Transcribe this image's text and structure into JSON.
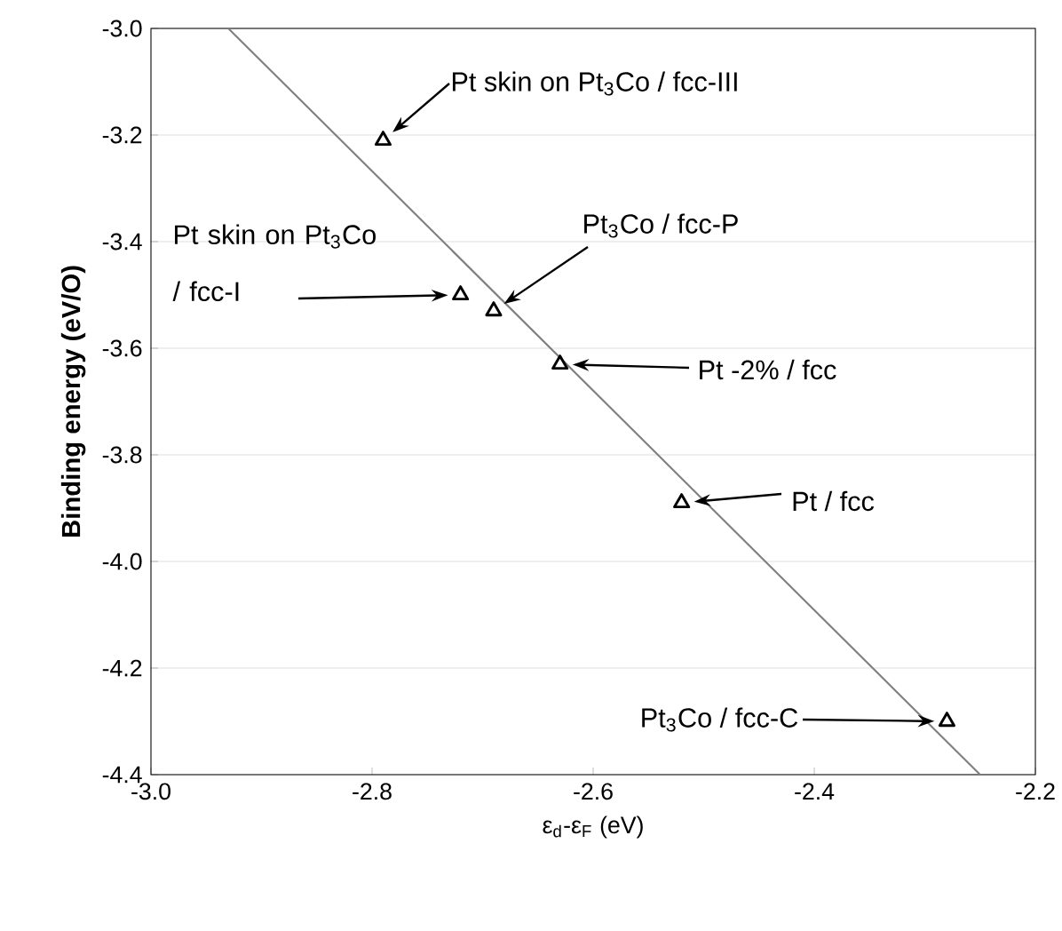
{
  "chart_data": {
    "type": "scatter",
    "xlabel": "ε$_{d}$-ε$_{F}$ (eV)",
    "ylabel": "Binding energy (eV/O)",
    "series": [
      {
        "color": "#000000",
        "marker": "triangle",
        "x": [
          -2.79,
          -2.72,
          -2.69,
          -2.63,
          -2.52,
          -2.28
        ],
        "values": [
          -3.21,
          -3.5,
          -3.53,
          -3.63,
          -3.89,
          -4.3
        ]
      },
      {
        "type": "line",
        "color": "#808080",
        "marker": "none",
        "x": [
          -2.93,
          -2.25
        ],
        "values": [
          -3.0,
          -4.4
        ]
      }
    ],
    "xlim": [
      -3.0,
      -2.2
    ],
    "ylim": [
      -4.4,
      -3.0
    ],
    "xticks": [
      {
        "value": -3.0,
        "label": "-3.0"
      },
      {
        "value": -2.8,
        "label": "-2.8"
      },
      {
        "value": -2.6,
        "label": "-2.6"
      },
      {
        "value": -2.4,
        "label": "-2.4"
      },
      {
        "value": -2.2,
        "label": "-2.2"
      }
    ],
    "yticks": [
      {
        "value": -4.4,
        "label": "-4.4"
      },
      {
        "value": -4.2,
        "label": "-4.2"
      },
      {
        "value": -4.0,
        "label": "-4.0"
      },
      {
        "value": -3.8,
        "label": "-3.8"
      },
      {
        "value": -3.6,
        "label": "-3.6"
      },
      {
        "value": -3.4,
        "label": "-3.4"
      },
      {
        "value": -3.2,
        "label": "-3.2"
      },
      {
        "value": -3.0,
        "label": "-3.0"
      }
    ],
    "grid": "y",
    "annotations": [
      "Pt skin on Pt$_{3}$Co / fcc-III",
      "Pt skin on Pt$_{3}$Co / fcc-I",
      "Pt$_{3}$Co / fcc-P",
      "Pt -2% / fcc",
      "Pt / fcc",
      "Pt$_{3}$Co / fcc-C"
    ]
  }
}
